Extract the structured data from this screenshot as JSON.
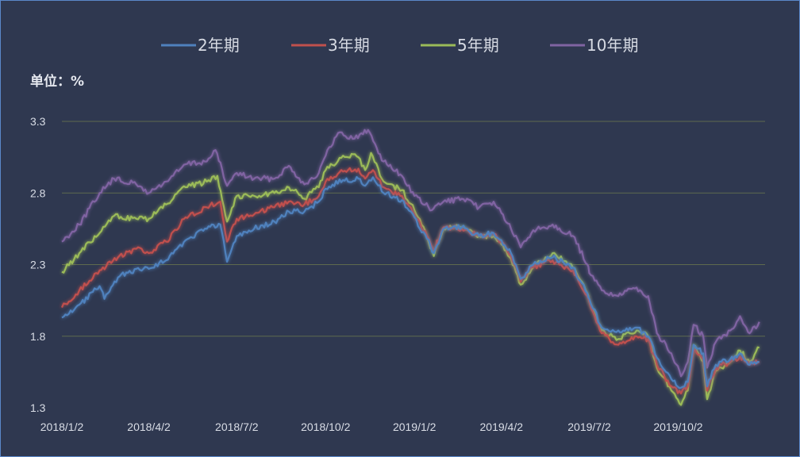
{
  "chart_data": {
    "type": "line",
    "unit_label": "单位：%",
    "ylim": [
      1.3,
      3.3
    ],
    "y_ticks": [
      "3.3",
      "2.8",
      "2.3",
      "1.8",
      "1.3"
    ],
    "grid": true,
    "legend_placement": "top-center",
    "x_ticks": [
      "2018/1/2",
      "2018/4/2",
      "2018/7/2",
      "2018/10/2",
      "2019/1/2",
      "2019/4/2",
      "2019/7/2",
      "2019/10/2"
    ],
    "x_tick_dates": [
      "2018-01-02",
      "2018-04-02",
      "2018-07-02",
      "2018-10-02",
      "2019-01-02",
      "2019-04-02",
      "2019-07-02",
      "2019-10-02"
    ],
    "series": [
      {
        "name": "2年期",
        "color": "#4f81bd",
        "points": [
          [
            "2018-01-02",
            1.93
          ],
          [
            "2018-01-20",
            2.02
          ],
          [
            "2018-02-10",
            2.15
          ],
          [
            "2018-02-15",
            2.06
          ],
          [
            "2018-03-01",
            2.21
          ],
          [
            "2018-03-20",
            2.27
          ],
          [
            "2018-04-02",
            2.27
          ],
          [
            "2018-04-20",
            2.33
          ],
          [
            "2018-05-10",
            2.47
          ],
          [
            "2018-06-01",
            2.55
          ],
          [
            "2018-06-15",
            2.58
          ],
          [
            "2018-06-22",
            2.32
          ],
          [
            "2018-07-02",
            2.5
          ],
          [
            "2018-07-20",
            2.55
          ],
          [
            "2018-08-10",
            2.6
          ],
          [
            "2018-08-25",
            2.67
          ],
          [
            "2018-09-10",
            2.67
          ],
          [
            "2018-09-25",
            2.74
          ],
          [
            "2018-10-02",
            2.83
          ],
          [
            "2018-10-20",
            2.89
          ],
          [
            "2018-11-05",
            2.9
          ],
          [
            "2018-11-12",
            2.85
          ],
          [
            "2018-11-20",
            2.91
          ],
          [
            "2018-12-01",
            2.8
          ],
          [
            "2018-12-20",
            2.75
          ],
          [
            "2019-01-02",
            2.63
          ],
          [
            "2019-01-15",
            2.48
          ],
          [
            "2019-01-22",
            2.38
          ],
          [
            "2019-02-01",
            2.55
          ],
          [
            "2019-02-20",
            2.56
          ],
          [
            "2019-03-10",
            2.5
          ],
          [
            "2019-03-25",
            2.52
          ],
          [
            "2019-04-02",
            2.47
          ],
          [
            "2019-04-12",
            2.38
          ],
          [
            "2019-04-22",
            2.2
          ],
          [
            "2019-05-05",
            2.3
          ],
          [
            "2019-05-25",
            2.35
          ],
          [
            "2019-06-15",
            2.28
          ],
          [
            "2019-06-30",
            2.1
          ],
          [
            "2019-07-02",
            2.06
          ],
          [
            "2019-07-15",
            1.86
          ],
          [
            "2019-08-01",
            1.84
          ],
          [
            "2019-08-20",
            1.86
          ],
          [
            "2019-09-01",
            1.8
          ],
          [
            "2019-09-10",
            1.65
          ],
          [
            "2019-09-25",
            1.5
          ],
          [
            "2019-10-05",
            1.44
          ],
          [
            "2019-10-12",
            1.48
          ],
          [
            "2019-10-18",
            1.74
          ],
          [
            "2019-10-28",
            1.68
          ],
          [
            "2019-11-01",
            1.45
          ],
          [
            "2019-11-10",
            1.6
          ],
          [
            "2019-11-25",
            1.64
          ],
          [
            "2019-12-05",
            1.68
          ],
          [
            "2019-12-15",
            1.6
          ],
          [
            "2019-12-25",
            1.62
          ]
        ]
      },
      {
        "name": "3年期",
        "color": "#c0504d",
        "points": [
          [
            "2018-01-02",
            2.0
          ],
          [
            "2018-01-20",
            2.12
          ],
          [
            "2018-02-10",
            2.26
          ],
          [
            "2018-03-01",
            2.35
          ],
          [
            "2018-03-20",
            2.41
          ],
          [
            "2018-04-02",
            2.38
          ],
          [
            "2018-04-20",
            2.46
          ],
          [
            "2018-05-10",
            2.63
          ],
          [
            "2018-06-01",
            2.7
          ],
          [
            "2018-06-15",
            2.74
          ],
          [
            "2018-06-22",
            2.46
          ],
          [
            "2018-07-02",
            2.62
          ],
          [
            "2018-07-20",
            2.65
          ],
          [
            "2018-08-10",
            2.7
          ],
          [
            "2018-08-25",
            2.74
          ],
          [
            "2018-09-10",
            2.72
          ],
          [
            "2018-09-25",
            2.78
          ],
          [
            "2018-10-02",
            2.88
          ],
          [
            "2018-10-20",
            2.95
          ],
          [
            "2018-11-05",
            2.97
          ],
          [
            "2018-11-12",
            2.9
          ],
          [
            "2018-11-20",
            2.96
          ],
          [
            "2018-12-01",
            2.84
          ],
          [
            "2018-12-20",
            2.78
          ],
          [
            "2019-01-02",
            2.65
          ],
          [
            "2019-01-15",
            2.5
          ],
          [
            "2019-01-22",
            2.4
          ],
          [
            "2019-02-01",
            2.56
          ],
          [
            "2019-02-20",
            2.55
          ],
          [
            "2019-03-10",
            2.5
          ],
          [
            "2019-03-25",
            2.51
          ],
          [
            "2019-04-02",
            2.46
          ],
          [
            "2019-04-12",
            2.36
          ],
          [
            "2019-04-22",
            2.18
          ],
          [
            "2019-05-05",
            2.28
          ],
          [
            "2019-05-25",
            2.33
          ],
          [
            "2019-06-15",
            2.26
          ],
          [
            "2019-06-30",
            2.08
          ],
          [
            "2019-07-02",
            2.04
          ],
          [
            "2019-07-15",
            1.82
          ],
          [
            "2019-08-01",
            1.74
          ],
          [
            "2019-08-20",
            1.8
          ],
          [
            "2019-09-01",
            1.78
          ],
          [
            "2019-09-10",
            1.6
          ],
          [
            "2019-09-25",
            1.45
          ],
          [
            "2019-10-05",
            1.4
          ],
          [
            "2019-10-12",
            1.45
          ],
          [
            "2019-10-18",
            1.7
          ],
          [
            "2019-10-28",
            1.64
          ],
          [
            "2019-11-01",
            1.42
          ],
          [
            "2019-11-10",
            1.58
          ],
          [
            "2019-11-25",
            1.62
          ],
          [
            "2019-12-05",
            1.66
          ],
          [
            "2019-12-15",
            1.6
          ],
          [
            "2019-12-25",
            1.62
          ]
        ]
      },
      {
        "name": "5年期",
        "color": "#9bbb59",
        "points": [
          [
            "2018-01-02",
            2.25
          ],
          [
            "2018-01-20",
            2.38
          ],
          [
            "2018-02-10",
            2.52
          ],
          [
            "2018-02-25",
            2.64
          ],
          [
            "2018-03-20",
            2.62
          ],
          [
            "2018-04-02",
            2.62
          ],
          [
            "2018-04-20",
            2.72
          ],
          [
            "2018-05-10",
            2.84
          ],
          [
            "2018-06-01",
            2.88
          ],
          [
            "2018-06-12",
            2.92
          ],
          [
            "2018-06-22",
            2.6
          ],
          [
            "2018-07-02",
            2.78
          ],
          [
            "2018-07-20",
            2.78
          ],
          [
            "2018-08-10",
            2.8
          ],
          [
            "2018-08-25",
            2.84
          ],
          [
            "2018-09-10",
            2.76
          ],
          [
            "2018-09-25",
            2.84
          ],
          [
            "2018-10-02",
            2.96
          ],
          [
            "2018-10-20",
            3.06
          ],
          [
            "2018-11-05",
            3.05
          ],
          [
            "2018-11-12",
            2.96
          ],
          [
            "2018-11-18",
            3.08
          ],
          [
            "2018-12-01",
            2.88
          ],
          [
            "2018-12-20",
            2.82
          ],
          [
            "2019-01-02",
            2.68
          ],
          [
            "2019-01-15",
            2.5
          ],
          [
            "2019-01-22",
            2.36
          ],
          [
            "2019-02-01",
            2.55
          ],
          [
            "2019-02-20",
            2.56
          ],
          [
            "2019-03-10",
            2.5
          ],
          [
            "2019-03-25",
            2.5
          ],
          [
            "2019-04-02",
            2.44
          ],
          [
            "2019-04-12",
            2.34
          ],
          [
            "2019-04-22",
            2.16
          ],
          [
            "2019-05-05",
            2.28
          ],
          [
            "2019-05-25",
            2.38
          ],
          [
            "2019-06-15",
            2.28
          ],
          [
            "2019-06-30",
            2.1
          ],
          [
            "2019-07-02",
            2.04
          ],
          [
            "2019-07-15",
            1.84
          ],
          [
            "2019-08-01",
            1.78
          ],
          [
            "2019-08-20",
            1.84
          ],
          [
            "2019-09-01",
            1.8
          ],
          [
            "2019-09-10",
            1.58
          ],
          [
            "2019-09-25",
            1.42
          ],
          [
            "2019-10-05",
            1.32
          ],
          [
            "2019-10-12",
            1.42
          ],
          [
            "2019-10-18",
            1.74
          ],
          [
            "2019-10-28",
            1.62
          ],
          [
            "2019-11-01",
            1.36
          ],
          [
            "2019-11-10",
            1.56
          ],
          [
            "2019-11-25",
            1.62
          ],
          [
            "2019-12-05",
            1.7
          ],
          [
            "2019-12-15",
            1.62
          ],
          [
            "2019-12-25",
            1.72
          ]
        ]
      },
      {
        "name": "10年期",
        "color": "#8064a2",
        "points": [
          [
            "2018-01-02",
            2.46
          ],
          [
            "2018-01-20",
            2.58
          ],
          [
            "2018-02-10",
            2.8
          ],
          [
            "2018-02-25",
            2.9
          ],
          [
            "2018-03-20",
            2.86
          ],
          [
            "2018-04-02",
            2.8
          ],
          [
            "2018-04-20",
            2.88
          ],
          [
            "2018-05-10",
            3.0
          ],
          [
            "2018-06-01",
            3.02
          ],
          [
            "2018-06-10",
            3.1
          ],
          [
            "2018-06-22",
            2.85
          ],
          [
            "2018-07-02",
            2.94
          ],
          [
            "2018-07-20",
            2.9
          ],
          [
            "2018-08-10",
            2.9
          ],
          [
            "2018-08-25",
            2.99
          ],
          [
            "2018-09-10",
            2.86
          ],
          [
            "2018-09-25",
            2.94
          ],
          [
            "2018-10-02",
            3.06
          ],
          [
            "2018-10-15",
            3.22
          ],
          [
            "2018-11-01",
            3.18
          ],
          [
            "2018-11-15",
            3.24
          ],
          [
            "2018-12-01",
            3.02
          ],
          [
            "2018-12-20",
            2.92
          ],
          [
            "2019-01-02",
            2.78
          ],
          [
            "2019-01-20",
            2.68
          ],
          [
            "2019-02-01",
            2.74
          ],
          [
            "2019-02-20",
            2.76
          ],
          [
            "2019-03-10",
            2.7
          ],
          [
            "2019-03-25",
            2.74
          ],
          [
            "2019-04-02",
            2.66
          ],
          [
            "2019-04-12",
            2.55
          ],
          [
            "2019-04-22",
            2.42
          ],
          [
            "2019-05-05",
            2.54
          ],
          [
            "2019-05-25",
            2.58
          ],
          [
            "2019-06-15",
            2.5
          ],
          [
            "2019-06-30",
            2.3
          ],
          [
            "2019-07-02",
            2.24
          ],
          [
            "2019-07-15",
            2.12
          ],
          [
            "2019-08-01",
            2.08
          ],
          [
            "2019-08-20",
            2.14
          ],
          [
            "2019-09-01",
            2.08
          ],
          [
            "2019-09-10",
            1.82
          ],
          [
            "2019-09-25",
            1.68
          ],
          [
            "2019-10-05",
            1.52
          ],
          [
            "2019-10-12",
            1.62
          ],
          [
            "2019-10-18",
            1.88
          ],
          [
            "2019-10-28",
            1.8
          ],
          [
            "2019-11-01",
            1.58
          ],
          [
            "2019-11-10",
            1.76
          ],
          [
            "2019-11-25",
            1.84
          ],
          [
            "2019-12-05",
            1.94
          ],
          [
            "2019-12-15",
            1.82
          ],
          [
            "2019-12-25",
            1.9
          ]
        ]
      }
    ]
  }
}
